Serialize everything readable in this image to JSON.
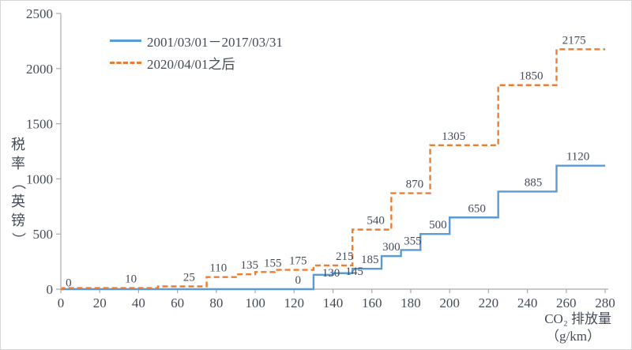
{
  "colors": {
    "series_old": "#5b9bd5",
    "series_new": "#ed7d31",
    "axis": "#a9a9a9",
    "text": "#454b57",
    "background": "#ffffff",
    "border": "#d6d6d6"
  },
  "chart_data": {
    "type": "step-line",
    "title": "",
    "xlabel_line1": "CO₂ 排放量",
    "xlabel_line2": "（g/km）",
    "ylabel": "税率（英镑）",
    "xlim": [
      0,
      280
    ],
    "ylim": [
      0,
      2500
    ],
    "xticks": [
      0,
      20,
      40,
      60,
      80,
      100,
      120,
      140,
      160,
      180,
      200,
      220,
      240,
      260,
      280
    ],
    "yticks": [
      0,
      500,
      1000,
      1500,
      2000,
      2500
    ],
    "grid": false,
    "legend_position": "top-left-inside",
    "series": [
      {
        "name": "2001/03/01－2017/03/31",
        "color": "#5b9bd5",
        "dash": "solid",
        "steps": [
          [
            0,
            0
          ],
          [
            130,
            130
          ],
          [
            140,
            145
          ],
          [
            150,
            185
          ],
          [
            165,
            300
          ],
          [
            175,
            355
          ],
          [
            185,
            500
          ],
          [
            200,
            650
          ],
          [
            225,
            885
          ],
          [
            255,
            1120
          ]
        ],
        "end_x": 280,
        "labels": [
          {
            "text": "0",
            "x": 122,
            "y": 0
          },
          {
            "text": "130",
            "x": 139,
            "y": 130,
            "dy": 9
          },
          {
            "text": "145",
            "x": 151,
            "y": 145,
            "dy": 9
          },
          {
            "text": "185",
            "x": 159,
            "y": 185
          },
          {
            "text": "300",
            "x": 170,
            "y": 300
          },
          {
            "text": "355",
            "x": 181,
            "y": 355
          },
          {
            "text": "500",
            "x": 194,
            "y": 500
          },
          {
            "text": "650",
            "x": 214,
            "y": 650
          },
          {
            "text": "885",
            "x": 243,
            "y": 885
          },
          {
            "text": "1120",
            "x": 266,
            "y": 1120
          }
        ]
      },
      {
        "name": "2020/04/01之后",
        "color": "#ed7d31",
        "dash": "dashed",
        "steps": [
          [
            0,
            0
          ],
          [
            1,
            10
          ],
          [
            50,
            25
          ],
          [
            75,
            110
          ],
          [
            90,
            135
          ],
          [
            100,
            155
          ],
          [
            110,
            175
          ],
          [
            130,
            215
          ],
          [
            150,
            540
          ],
          [
            170,
            870
          ],
          [
            190,
            1305
          ],
          [
            225,
            1850
          ],
          [
            255,
            2175
          ]
        ],
        "end_x": 280,
        "labels": [
          {
            "text": "0",
            "x": 4,
            "y": 10,
            "dy": 5
          },
          {
            "text": "10",
            "x": 36,
            "y": 10
          },
          {
            "text": "25",
            "x": 66,
            "y": 25
          },
          {
            "text": "110",
            "x": 81,
            "y": 110
          },
          {
            "text": "135",
            "x": 97,
            "y": 135
          },
          {
            "text": "155",
            "x": 109,
            "y": 155
          },
          {
            "text": "175",
            "x": 122,
            "y": 175
          },
          {
            "text": "215",
            "x": 146,
            "y": 215
          },
          {
            "text": "540",
            "x": 162,
            "y": 540
          },
          {
            "text": "870",
            "x": 182,
            "y": 870
          },
          {
            "text": "1305",
            "x": 202,
            "y": 1305
          },
          {
            "text": "1850",
            "x": 242,
            "y": 1850
          },
          {
            "text": "2175",
            "x": 264,
            "y": 2175
          }
        ]
      }
    ]
  }
}
